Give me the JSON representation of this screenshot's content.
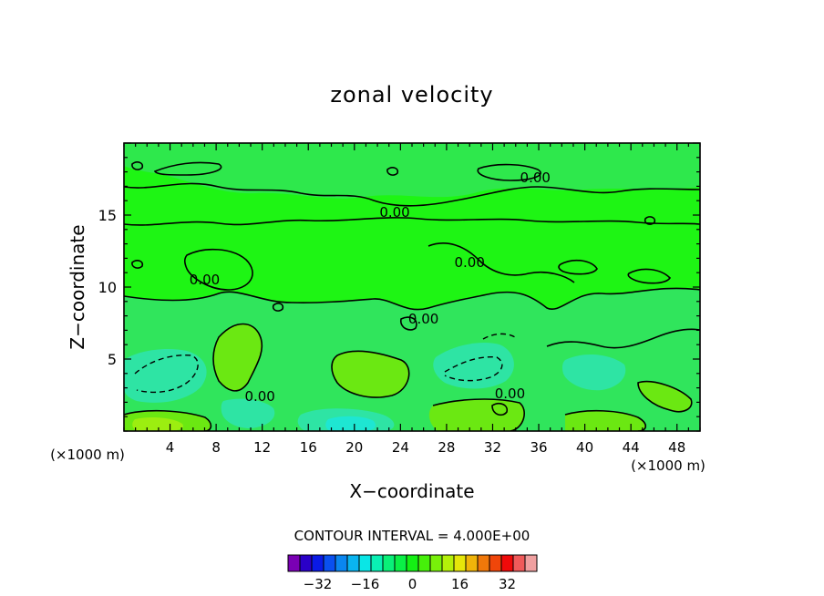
{
  "chart_data": {
    "type": "contour",
    "title": "zonal velocity",
    "xlabel": "X−coordinate",
    "ylabel": "Z−coordinate",
    "x_unit": "(×1000 m)",
    "y_unit": "(×1000 m)",
    "x_ticks": [
      4,
      8,
      12,
      16,
      20,
      24,
      28,
      32,
      36,
      40,
      44,
      48
    ],
    "y_ticks": [
      5,
      10,
      15
    ],
    "xlim": [
      0,
      50
    ],
    "ylim": [
      0,
      20
    ],
    "contour_interval_label": "CONTOUR INTERVAL = 4.000E+00",
    "zero_contour_label": "0.00",
    "zero_contour_labels": [
      {
        "x": 35.7,
        "y": 17.6
      },
      {
        "x": 23.5,
        "y": 15.2
      },
      {
        "x": 30.0,
        "y": 11.7
      },
      {
        "x": 7.0,
        "y": 10.5
      },
      {
        "x": 26.0,
        "y": 7.8
      },
      {
        "x": 11.8,
        "y": 2.4
      },
      {
        "x": 33.5,
        "y": 2.6
      }
    ],
    "colorbar": {
      "tick_labels": [
        "−32",
        "−16",
        "0",
        "16",
        "32"
      ],
      "tick_values": [
        -32,
        -16,
        0,
        16,
        32
      ],
      "colors": [
        "#7a00b4",
        "#2a00c8",
        "#0a1ae6",
        "#0a50f0",
        "#0a86f0",
        "#0ab4f0",
        "#0ae6e6",
        "#0af0b4",
        "#0af078",
        "#0af046",
        "#14f014",
        "#46f00a",
        "#78f00a",
        "#b4f00a",
        "#e6e60a",
        "#f0b40a",
        "#f0780a",
        "#f0460a",
        "#f00a0a",
        "#f05a5a",
        "#f0a0a0"
      ]
    },
    "field_levels": [
      {
        "value": 0,
        "color": "#1ef514",
        "region": "upper domain (z 8–20)"
      },
      {
        "value": -4,
        "color": "#32e864",
        "region": "lower domain background"
      },
      {
        "value": 4,
        "color": "#73ec10",
        "region": "positive patches near surface"
      },
      {
        "value": -8,
        "color": "#2ee8a8",
        "region": "negative cores near x=4, 28–32"
      }
    ]
  }
}
